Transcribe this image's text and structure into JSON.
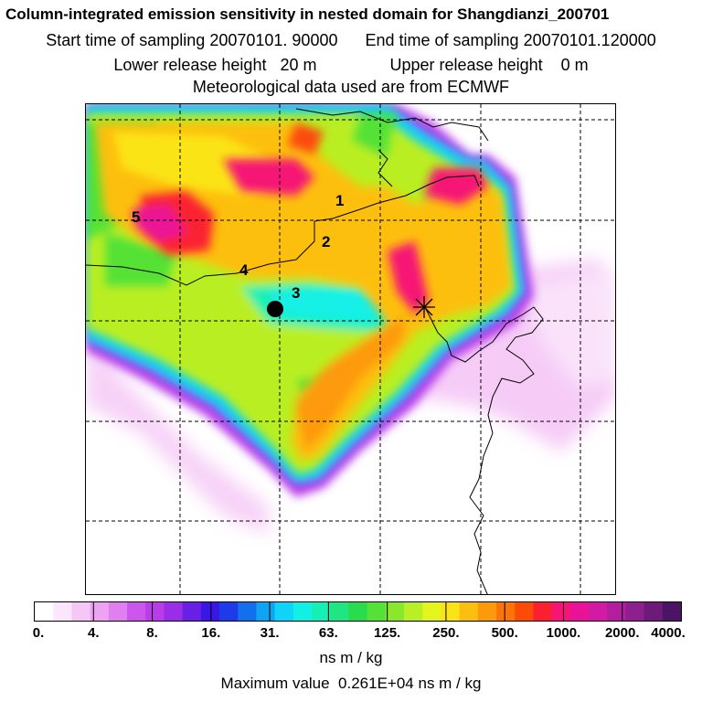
{
  "header": {
    "title": "Column-integrated emission sensitivity in nested domain for Shangdianzi_200701",
    "start_label": "Start time of sampling",
    "start_value": "20070101. 90000",
    "end_label": "End time of sampling",
    "end_value": "20070101.120000",
    "lower_label": "Lower release height",
    "lower_value": "20 m",
    "upper_label": "Upper release height",
    "upper_value": "0 m",
    "met_line": "Meteorological data used are from ECMWF"
  },
  "map": {
    "point_labels": [
      "1",
      "2",
      "3",
      "4",
      "5"
    ],
    "station_marker": "star-icon",
    "release_marker": "filled-circle"
  },
  "colorbar": {
    "tick_labels": [
      "0.",
      "4.",
      "8.",
      "16.",
      "31.",
      "63.",
      "125.",
      "250.",
      "500.",
      "1000.",
      "2000.",
      "4000."
    ],
    "tick_values": [
      0,
      4,
      8,
      16,
      31,
      63,
      125,
      250,
      500,
      1000,
      2000,
      4000
    ],
    "colors": [
      "#ffffff",
      "#fbe6fb",
      "#f5c7f6",
      "#eea3f2",
      "#e07ff0",
      "#cc55ee",
      "#b93bea",
      "#9a2ee8",
      "#6a1fe6",
      "#3a17e4",
      "#1d3be8",
      "#1270ee",
      "#0fa3f3",
      "#10d3f8",
      "#12f0e6",
      "#17f0b4",
      "#1fe680",
      "#28dc4e",
      "#55e236",
      "#8ae82c",
      "#b9ef24",
      "#e3f41e",
      "#fbe415",
      "#fdbf0f",
      "#fd9a0b",
      "#fc7408",
      "#fc4b07",
      "#fb2030",
      "#f61575",
      "#ea1296",
      "#d31aa4",
      "#b11f9e",
      "#8e1f8e",
      "#6d1a7a",
      "#4b1464"
    ],
    "unit": "ns m / kg"
  },
  "max_label": "Maximum value",
  "max_value": "0.261E+04 ns m / kg"
}
